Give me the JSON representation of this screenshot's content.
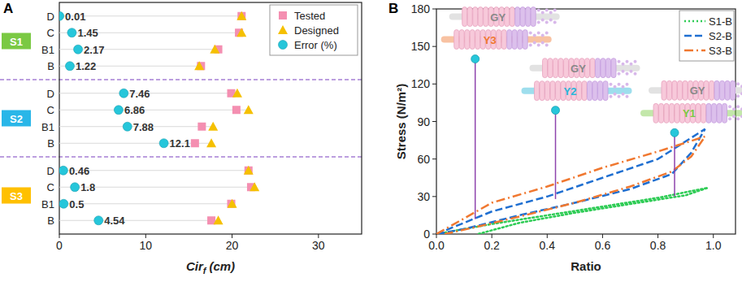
{
  "chart_data": [
    {
      "type": "dot",
      "panel": "A",
      "orientation": "horizontal",
      "legend": "top-right",
      "x_label": {
        "text": "Cir",
        "subscript": "f",
        "unit": "(cm)"
      },
      "xlim": [
        0,
        35
      ],
      "xticks": [
        0,
        10,
        20,
        30
      ],
      "groups": [
        {
          "name": "S1",
          "color": "#7ac943",
          "categories": [
            "D",
            "C",
            "B1",
            "B"
          ]
        },
        {
          "name": "S2",
          "color": "#29b6e8",
          "categories": [
            "D",
            "C",
            "B1",
            "B"
          ]
        },
        {
          "name": "S3",
          "color": "#ffc000",
          "categories": [
            "D",
            "C",
            "B1",
            "B"
          ]
        }
      ],
      "series": [
        {
          "name": "Tested",
          "color": "#f48fb1",
          "marker": "square",
          "values": [
            21.1,
            20.8,
            18.4,
            16.4,
            19.9,
            20.5,
            16.5,
            15.7,
            21.9,
            22.2,
            19.9,
            17.6
          ]
        },
        {
          "name": "Designed",
          "color": "#f5c000",
          "marker": "triangle",
          "values": [
            21.1,
            21.1,
            18.0,
            16.2,
            20.6,
            21.9,
            17.8,
            17.6,
            21.9,
            22.6,
            20.0,
            18.4
          ]
        },
        {
          "name": "Error (%)",
          "color": "#26c6da",
          "marker": "circle",
          "data_labels": true,
          "values": [
            0.01,
            1.45,
            2.17,
            1.22,
            7.46,
            6.86,
            7.88,
            12.1,
            0.46,
            1.8,
            0.5,
            4.54
          ]
        }
      ]
    },
    {
      "type": "line",
      "panel": "B",
      "legend": "top-right",
      "x_label": "Ratio",
      "y_label": "Stress (N/m²)",
      "xlim": [
        0,
        1.08
      ],
      "xticks": [
        {
          "value": 0,
          "label": "0.0"
        },
        {
          "value": 0.2,
          "label": "0.2"
        },
        {
          "value": 0.4,
          "label": "0.4"
        },
        {
          "value": 0.6,
          "label": "0.6"
        },
        {
          "value": 0.8,
          "label": "0.8"
        },
        {
          "value": 1,
          "label": "1.0"
        }
      ],
      "ylim": [
        0,
        180
      ],
      "yticks": [
        0,
        30,
        60,
        90,
        120,
        150,
        180
      ],
      "series": [
        {
          "name": "S1-B",
          "color": "#2ecc55",
          "line_style": "dotted",
          "x": [
            0,
            0.2,
            0.4,
            0.6,
            0.8,
            0.98,
            0.9,
            0.7,
            0.5,
            0.3,
            0.15
          ],
          "values": [
            0,
            8,
            15,
            22,
            29,
            37,
            31,
            24,
            17,
            9,
            0
          ]
        },
        {
          "name": "S2-B",
          "color": "#1f6fd1",
          "line_style": "dashed",
          "x": [
            0,
            0.2,
            0.4,
            0.6,
            0.8,
            0.97,
            0.92,
            0.85,
            0.7,
            0.5,
            0.3,
            0.1,
            0
          ],
          "values": [
            0,
            18,
            30,
            45,
            60,
            84,
            65,
            48,
            36,
            25,
            15,
            4,
            0
          ]
        },
        {
          "name": "S3-B",
          "color": "#f07830",
          "line_style": "dashdot",
          "x": [
            0,
            0.2,
            0.4,
            0.6,
            0.8,
            0.97,
            0.92,
            0.85,
            0.7,
            0.5,
            0.3,
            0.15,
            0.03
          ],
          "values": [
            0,
            25,
            38,
            53,
            66,
            78,
            62,
            50,
            38,
            25,
            14,
            6,
            0
          ]
        }
      ],
      "reference_label": "GY",
      "annotations": [
        {
          "label": "Y3",
          "color": "#f07830",
          "x": 0.14,
          "y": 140,
          "y_end": 12
        },
        {
          "label": "Y2",
          "color": "#29b6d8",
          "x": 0.43,
          "y": 99,
          "y_end": 28
        },
        {
          "label": "Y1",
          "color": "#7ac943",
          "x": 0.86,
          "y": 81,
          "y_end": 30
        }
      ]
    }
  ]
}
